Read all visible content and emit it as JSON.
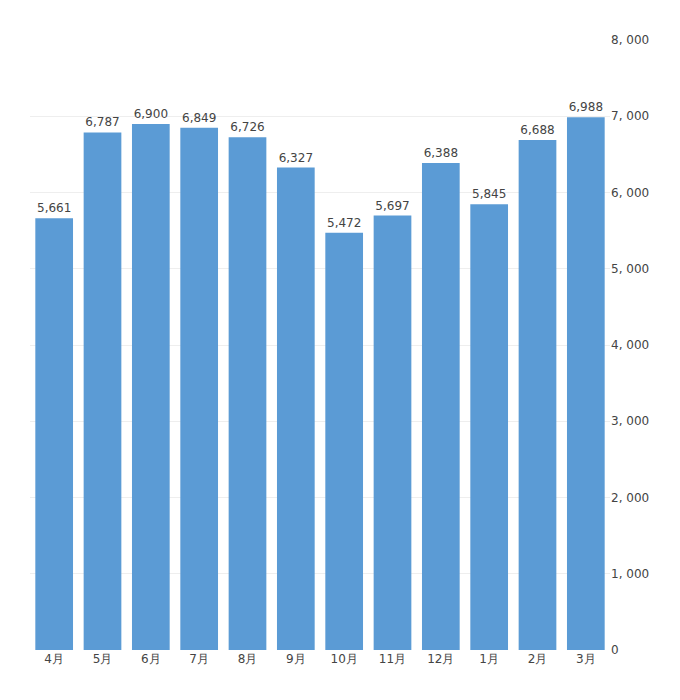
{
  "chart_data": {
    "type": "bar",
    "categories": [
      "4月",
      "5月",
      "6月",
      "7月",
      "8月",
      "9月",
      "10月",
      "11月",
      "12月",
      "1月",
      "2月",
      "3月"
    ],
    "values": [
      5661,
      6787,
      6900,
      6849,
      6726,
      6327,
      5472,
      5697,
      6388,
      5845,
      6688,
      6988
    ],
    "value_labels": [
      "5,661",
      "6,787",
      "6,900",
      "6,849",
      "6,726",
      "6,327",
      "5,472",
      "5,697",
      "6,388",
      "5,845",
      "6,688",
      "6,988"
    ],
    "data_labels": true,
    "color": "#5B9BD5",
    "ylim": [
      0,
      8000
    ],
    "yticks": [
      0,
      {
        "value": 1000,
        "label": "1, 000"
      },
      {
        "value": 2000,
        "label": "2, 000"
      },
      {
        "value": 3000,
        "label": "3, 000"
      },
      {
        "value": 4000,
        "label": "4, 000"
      },
      {
        "value": 5000,
        "label": "5, 000"
      },
      {
        "value": 6000,
        "label": "6, 000"
      },
      {
        "value": 7000,
        "label": "7, 000"
      },
      {
        "value": 8000,
        "label": "8, 000"
      }
    ],
    "grid": true
  }
}
